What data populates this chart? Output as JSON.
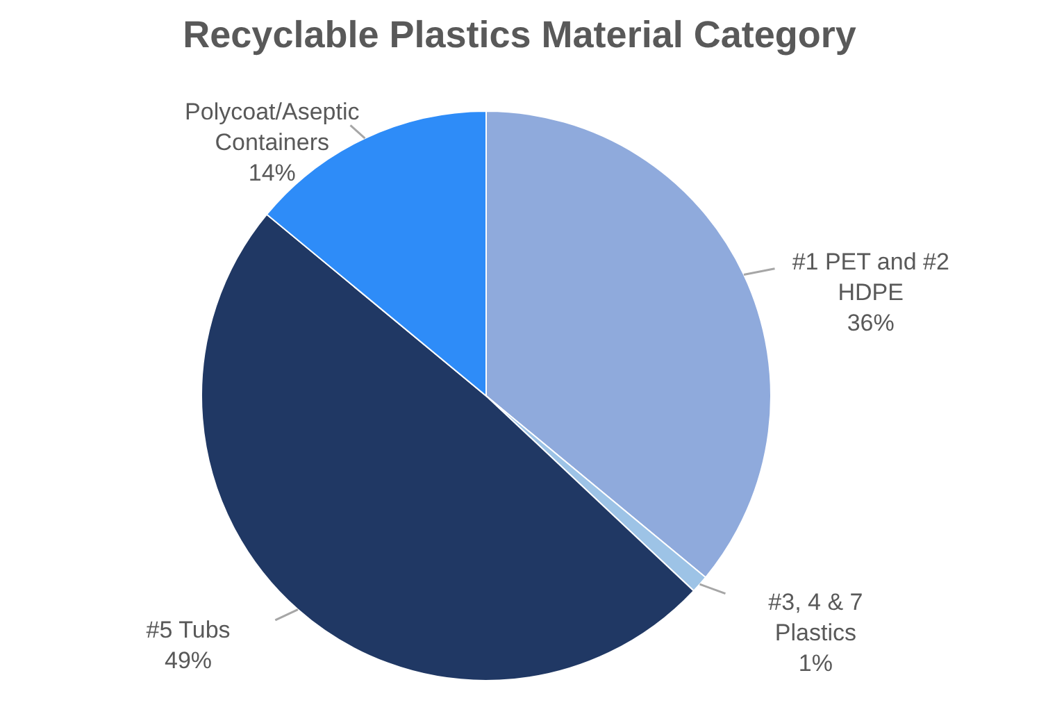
{
  "chart_data": {
    "type": "pie",
    "title": "Recyclable Plastics Material Category",
    "categories": [
      "#1 PET and #2 HDPE",
      "#3, 4 & 7 Plastics",
      "#5 Tubs",
      "Polycoat/Aseptic Containers"
    ],
    "values": [
      36,
      1,
      49,
      14
    ],
    "colors": [
      "#8faadc",
      "#9dc3e6",
      "#203864",
      "#2e8cf8"
    ],
    "value_labels": [
      "36%",
      "1%",
      "49%",
      "14%"
    ]
  }
}
